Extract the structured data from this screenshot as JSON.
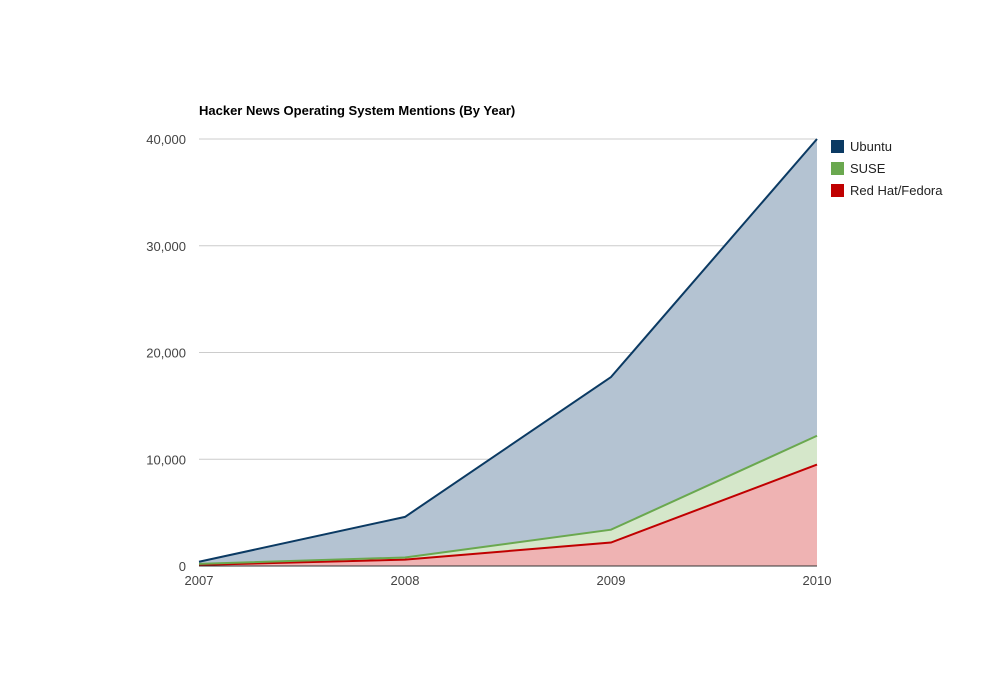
{
  "chart_data": {
    "type": "area",
    "stacked": true,
    "title": "Hacker News Operating System Mentions (By Year)",
    "xlabel": "",
    "ylabel": "",
    "categories": [
      "2007",
      "2008",
      "2009",
      "2010"
    ],
    "ylim": [
      0,
      40000
    ],
    "yticks": [
      0,
      10000,
      20000,
      30000,
      40000
    ],
    "ytick_labels": [
      "0",
      "10,000",
      "20,000",
      "30,000",
      "40,000"
    ],
    "grid": true,
    "legend_position": "right",
    "series": [
      {
        "name": "Red Hat/Fedora",
        "color": "#c00000",
        "fill": "#efb3b3",
        "values": [
          100,
          600,
          2200,
          9500
        ]
      },
      {
        "name": "SUSE",
        "color": "#6aa84f",
        "fill": "#d5e7ca",
        "values": [
          100,
          200,
          1200,
          2700
        ]
      },
      {
        "name": "Ubuntu",
        "color": "#0b3a63",
        "fill": "#b4c3d2",
        "values": [
          200,
          3800,
          14300,
          27800
        ]
      }
    ],
    "legend_order": [
      "Ubuntu",
      "SUSE",
      "Red Hat/Fedora"
    ]
  }
}
